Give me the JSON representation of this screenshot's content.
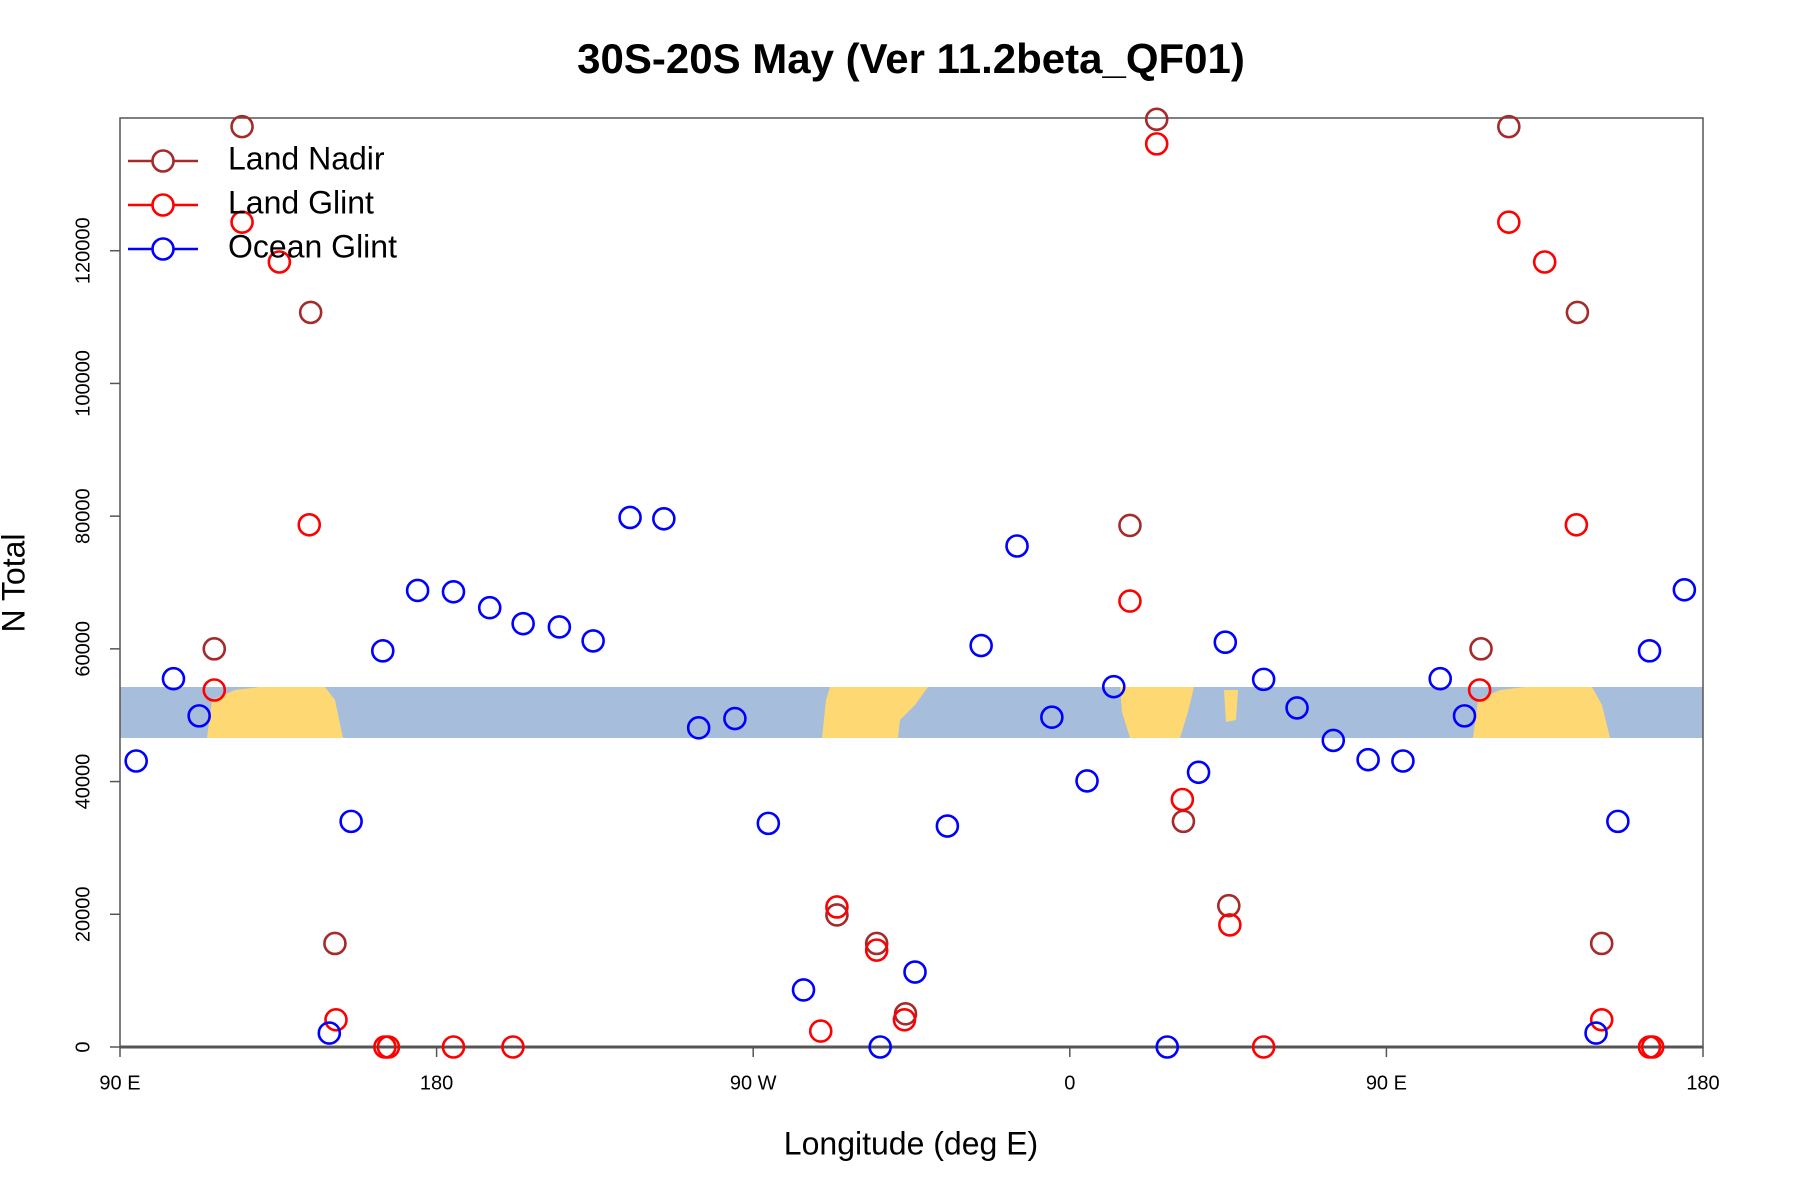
{
  "chart_data": {
    "type": "scatter",
    "title": "30S-20S May (Ver 11.2beta_QF01)",
    "x_label": "Longitude (deg E)",
    "y_label": "N Total",
    "xlim": [
      90,
      540
    ],
    "xticks": [
      {
        "value": 90,
        "label": "90 E"
      },
      180,
      {
        "value": 270,
        "label": "90 W"
      },
      {
        "value": 360,
        "label": "0"
      },
      {
        "value": 450,
        "label": "90 E"
      },
      {
        "value": 540,
        "label": "180"
      }
    ],
    "ylim": [
      0,
      140000
    ],
    "yticks": [
      0,
      20000,
      40000,
      60000,
      80000,
      100000,
      120000
    ],
    "legend": "top-left",
    "series": [
      {
        "name": "Land Nadir",
        "color": "#a52a2a",
        "x": [
          124.7,
          116.8,
          144.2,
          151.1,
          293.8,
          305.1,
          313.3,
          377.1,
          384.7,
          392.3,
          405.2,
          476.9,
          484.8,
          504.3,
          511.2
        ],
        "values": [
          138700,
          60000,
          110700,
          15600,
          19900,
          15600,
          5000,
          78600,
          139800,
          34000,
          21300,
          60000,
          138700,
          110700,
          15600
        ]
      },
      {
        "name": "Land Glint",
        "color": "#ff0000",
        "x": [
          124.7,
          116.8,
          135.3,
          143.8,
          151.4,
          165.3,
          166.3,
          184.8,
          201.7,
          289.2,
          293.8,
          305.1,
          313,
          377.1,
          384.7,
          392,
          405.5,
          415.1,
          476.5,
          484.8,
          495,
          504,
          511.2,
          524.8,
          525.7
        ],
        "values": [
          124300,
          53800,
          118300,
          78700,
          4100,
          0,
          0,
          0,
          0,
          2400,
          21100,
          14600,
          4100,
          67200,
          136100,
          37300,
          18400,
          0,
          53800,
          124300,
          118300,
          78700,
          4100,
          0,
          0
        ]
      },
      {
        "name": "Ocean Glint",
        "color": "#0000ff",
        "x": [
          94.6,
          105.2,
          112.5,
          149.5,
          155.7,
          164.7,
          174.6,
          184.8,
          195.1,
          204.6,
          214.9,
          224.5,
          235,
          244.6,
          254.5,
          264.8,
          274.3,
          284.3,
          306.1,
          316,
          325.2,
          334.8,
          345,
          354.9,
          364.9,
          372.5,
          387.7,
          396.6,
          404.2,
          415.1,
          424.6,
          434.9,
          444.8,
          454.7,
          465.3,
          472.2,
          509.6,
          515.8,
          524.8,
          534.7
        ],
        "values": [
          43100,
          55500,
          49900,
          2100,
          34000,
          59700,
          68800,
          68600,
          66200,
          63800,
          63300,
          61200,
          79800,
          79600,
          48100,
          49500,
          33700,
          8600,
          0,
          11300,
          33300,
          60500,
          75500,
          49700,
          40100,
          54300,
          0,
          41400,
          61000,
          55400,
          51100,
          46200,
          43300,
          43100,
          55500,
          49900,
          2100,
          34000,
          59700,
          68900
        ]
      }
    ]
  }
}
